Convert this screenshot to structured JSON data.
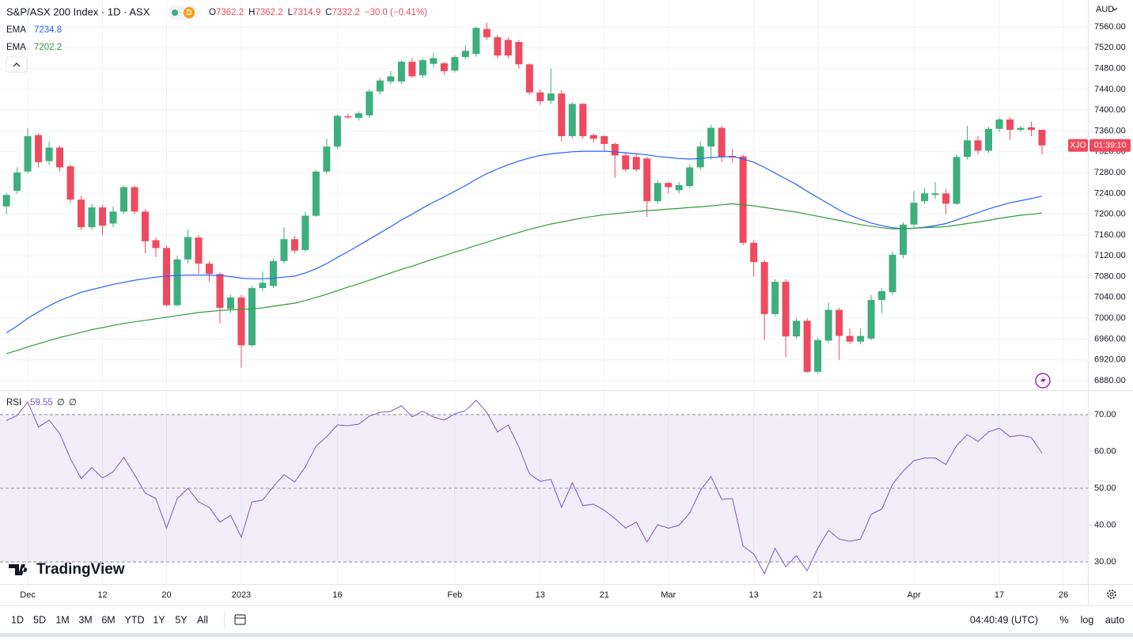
{
  "chart_data": [
    {
      "type": "candlestick",
      "title": "S&P/ASX 200 Index · 1D · ASX",
      "up_color": "#3dae7e",
      "down_color": "#ee4a5e",
      "grid": true,
      "log_scale": false,
      "xlim": [
        -0.6,
        101.3
      ],
      "xticks": [
        {
          "value": 2,
          "label": "Dec"
        },
        {
          "value": 9,
          "label": "12"
        },
        {
          "value": 15,
          "label": "20"
        },
        {
          "value": 22,
          "label": "2023"
        },
        {
          "value": 31,
          "label": "16"
        },
        {
          "value": 42,
          "label": "Feb"
        },
        {
          "value": 50,
          "label": "13"
        },
        {
          "value": 56,
          "label": "21"
        },
        {
          "value": 62,
          "label": "Mar"
        },
        {
          "value": 70,
          "label": "13"
        },
        {
          "value": 76,
          "label": "21"
        },
        {
          "value": 85,
          "label": "Apr"
        },
        {
          "value": 93,
          "label": "17"
        },
        {
          "value": 99,
          "label": "26"
        }
      ],
      "ylim": [
        6863.3,
        7611.7
      ],
      "yticks": [
        {
          "value": 6880,
          "label": "6880.00"
        },
        {
          "value": 6920,
          "label": "6920.00"
        },
        {
          "value": 6960,
          "label": "6960.00"
        },
        {
          "value": 7000,
          "label": "7000.00"
        },
        {
          "value": 7040,
          "label": "7040.00"
        },
        {
          "value": 7080,
          "label": "7080.00"
        },
        {
          "value": 7120,
          "label": "7120.00"
        },
        {
          "value": 7160,
          "label": "7160.00"
        },
        {
          "value": 7200,
          "label": "7200.00"
        },
        {
          "value": 7240,
          "label": "7240.00"
        },
        {
          "value": 7280,
          "label": "7280.00"
        },
        {
          "value": 7320,
          "label": "7320.00"
        },
        {
          "value": 7360,
          "label": "7360.00"
        },
        {
          "value": 7400,
          "label": "7400.00"
        },
        {
          "value": 7440,
          "label": "7440.00"
        },
        {
          "value": 7480,
          "label": "7480.00"
        },
        {
          "value": 7520,
          "label": "7520.00"
        },
        {
          "value": 7560,
          "label": "7560.00"
        }
      ],
      "ohlc_keys": [
        "O",
        "H",
        "L",
        "C"
      ],
      "change_label": "−30.0 (−0.41%)",
      "open": [
        7215,
        7245,
        7282,
        7352,
        7302,
        7328,
        7292,
        7228,
        7175,
        7213,
        7182,
        7205,
        7252,
        7205,
        7150,
        7135,
        7025,
        7113,
        7155,
        7105,
        7085,
        7018,
        7040,
        6948,
        7058,
        7062,
        7110,
        7152,
        7131,
        7197,
        7282,
        7330,
        7388,
        7385,
        7390,
        7436,
        7455,
        7455,
        7493,
        7467,
        7489,
        7490,
        7476,
        7502,
        7508,
        7556,
        7540,
        7535,
        7531,
        7488,
        7434,
        7418,
        7432,
        7350,
        7412,
        7352,
        7350,
        7335,
        7313,
        7310,
        7307,
        7225,
        7260,
        7246,
        7254,
        7290,
        7330,
        7366,
        7312,
        7311,
        7145,
        7108,
        7008,
        7070,
        6965,
        6995,
        6897,
        6957,
        7016,
        6966,
        6955,
        6961,
        7035,
        7050,
        7122,
        7180,
        7225,
        7237,
        7240,
        7220,
        7310,
        7342,
        7322,
        7364,
        7382,
        7362,
        7367,
        7362.2
      ],
      "high": [
        7240,
        7290,
        7365,
        7355,
        7340,
        7332,
        7295,
        7235,
        7220,
        7218,
        7215,
        7255,
        7255,
        7210,
        7155,
        7140,
        7120,
        7170,
        7160,
        7110,
        7088,
        7045,
        7045,
        7062,
        7090,
        7115,
        7175,
        7158,
        7205,
        7285,
        7345,
        7392,
        7393,
        7398,
        7440,
        7462,
        7475,
        7496,
        7500,
        7500,
        7510,
        7493,
        7506,
        7525,
        7560,
        7568,
        7545,
        7540,
        7535,
        7490,
        7440,
        7480,
        7438,
        7415,
        7414,
        7355,
        7352,
        7338,
        7318,
        7315,
        7310,
        7265,
        7262,
        7262,
        7295,
        7340,
        7372,
        7370,
        7325,
        7315,
        7150,
        7112,
        7075,
        7075,
        7000,
        7000,
        6962,
        7030,
        7020,
        6980,
        6980,
        7045,
        7058,
        7128,
        7185,
        7245,
        7250,
        7262,
        7248,
        7315,
        7370,
        7350,
        7368,
        7386,
        7386,
        7370,
        7378,
        7362.2
      ],
      "low": [
        7200,
        7240,
        7278,
        7290,
        7295,
        7282,
        7222,
        7170,
        7170,
        7160,
        7175,
        7200,
        7200,
        7125,
        7118,
        7022,
        7022,
        7105,
        7085,
        7070,
        6990,
        7010,
        6905,
        6945,
        7052,
        7058,
        7105,
        7125,
        7128,
        7195,
        7278,
        7325,
        7383,
        7380,
        7385,
        7430,
        7450,
        7450,
        7462,
        7462,
        7482,
        7468,
        7472,
        7498,
        7503,
        7535,
        7500,
        7500,
        7480,
        7430,
        7410,
        7412,
        7340,
        7345,
        7345,
        7338,
        7320,
        7270,
        7282,
        7282,
        7195,
        7220,
        7240,
        7240,
        7250,
        7285,
        7305,
        7300,
        7300,
        7140,
        7080,
        6958,
        7004,
        6925,
        6960,
        6895,
        6893,
        6952,
        6920,
        6950,
        6950,
        6958,
        7010,
        7045,
        7115,
        7175,
        7220,
        7230,
        7200,
        7218,
        7305,
        7315,
        7318,
        7358,
        7343,
        7358,
        7350,
        7314.9
      ],
      "close": [
        7237,
        7280,
        7350,
        7300,
        7328,
        7290,
        7228,
        7175,
        7213,
        7178,
        7205,
        7252,
        7205,
        7148,
        7135,
        7025,
        7113,
        7156,
        7105,
        7085,
        7020,
        7040,
        6948,
        7058,
        7068,
        7110,
        7152,
        7130,
        7197,
        7282,
        7330,
        7389,
        7386,
        7394,
        7436,
        7457,
        7465,
        7493,
        7465,
        7496,
        7500,
        7475,
        7502,
        7514,
        7558,
        7540,
        7505,
        7505,
        7488,
        7434,
        7417,
        7432,
        7350,
        7412,
        7350,
        7345,
        7335,
        7313,
        7286,
        7286,
        7225,
        7260,
        7252,
        7256,
        7290,
        7330,
        7366,
        7310,
        7309,
        7145,
        7108,
        7008,
        7070,
        6965,
        6995,
        6897,
        6958,
        7016,
        6966,
        6955,
        6966,
        7035,
        7052,
        7122,
        7180,
        7222,
        7240,
        7240,
        7220,
        7310,
        7342,
        7322,
        7364,
        7382,
        7362,
        7366,
        7362,
        7332.2
      ],
      "series": [
        {
          "name": "EMA",
          "color": "#2962ff",
          "values": [
            6972,
            6985,
            7000,
            7012,
            7024,
            7034,
            7042,
            7050,
            7055,
            7060,
            7065,
            7069,
            7073,
            7076,
            7079,
            7081,
            7082,
            7083,
            7083,
            7083,
            7082,
            7080,
            7077,
            7076,
            7076,
            7077,
            7079,
            7081,
            7087,
            7095,
            7105,
            7117,
            7128,
            7140,
            7152,
            7164,
            7176,
            7189,
            7200,
            7212,
            7223,
            7233,
            7244,
            7255,
            7267,
            7278,
            7287,
            7295,
            7302,
            7308,
            7313,
            7316,
            7318,
            7320,
            7321,
            7321,
            7321,
            7320,
            7318,
            7316,
            7314,
            7311,
            7309,
            7307,
            7306,
            7307,
            7309,
            7310,
            7311,
            7306,
            7300,
            7290,
            7279,
            7268,
            7257,
            7244,
            7232,
            7220,
            7208,
            7198,
            7190,
            7183,
            7178,
            7174,
            7172,
            7173,
            7175,
            7178,
            7182,
            7189,
            7196,
            7203,
            7210,
            7216,
            7222,
            7226,
            7230,
            7234.8
          ]
        },
        {
          "name": "EMA",
          "color": "#2e9e3e",
          "values": [
            6932,
            6938,
            6945,
            6951,
            6957,
            6963,
            6968,
            6973,
            6978,
            6982,
            6986,
            6990,
            6993,
            6996,
            6999,
            7002,
            7005,
            7008,
            7011,
            7013,
            7015,
            7016,
            7017,
            7018,
            7020,
            7023,
            7026,
            7029,
            7034,
            7040,
            7046,
            7053,
            7060,
            7066,
            7073,
            7080,
            7087,
            7094,
            7100,
            7107,
            7114,
            7120,
            7127,
            7133,
            7140,
            7146,
            7153,
            7159,
            7165,
            7171,
            7176,
            7181,
            7185,
            7189,
            7193,
            7196,
            7199,
            7201,
            7203,
            7205,
            7207,
            7208,
            7210,
            7211,
            7213,
            7214,
            7216,
            7218,
            7220,
            7218,
            7216,
            7213,
            7210,
            7207,
            7204,
            7200,
            7196,
            7192,
            7188,
            7184,
            7180,
            7177,
            7174,
            7172,
            7172,
            7173,
            7174,
            7175,
            7176,
            7179,
            7182,
            7185,
            7188,
            7192,
            7195,
            7198,
            7200,
            7202.2
          ]
        }
      ],
      "currency": "AUD",
      "symbol_label": "XJO",
      "countdown": "01:39:10"
    },
    {
      "type": "line",
      "title": "RSI",
      "legend_extras": [
        "∅",
        "∅"
      ],
      "ylim": [
        24,
        76
      ],
      "yticks": [
        {
          "value": 30,
          "label": "30.00"
        },
        {
          "value": 40,
          "label": "40.00"
        },
        {
          "value": 50,
          "label": "50.00"
        },
        {
          "value": 60,
          "label": "60.00"
        },
        {
          "value": 70,
          "label": "70.00"
        }
      ],
      "levels": [
        30,
        50,
        70
      ],
      "band_color": "#7e57c2",
      "series": [
        {
          "name": "RSI",
          "color": "#7e57c2",
          "values": [
            68.4,
            69.8,
            73.4,
            66.6,
            68.5,
            64.8,
            58,
            52.6,
            55.6,
            52.8,
            54.5,
            58.4,
            53.7,
            48.7,
            47.2,
            39.2,
            47.2,
            50,
            46.3,
            44.8,
            40.8,
            42.7,
            36.7,
            46.3,
            46.8,
            50.4,
            53.7,
            51.7,
            55.8,
            61.4,
            64,
            67.2,
            67,
            67.4,
            69.6,
            70.6,
            70.9,
            72.4,
            69.4,
            70.9,
            69.4,
            68.5,
            70.2,
            71.1,
            73.9,
            70.6,
            65.3,
            67.2,
            61.2,
            53.9,
            51.9,
            52.4,
            44.8,
            51.5,
            45.3,
            45.7,
            44,
            41.8,
            39.2,
            40.8,
            35.4,
            40.1,
            39.2,
            39.9,
            43.3,
            49.4,
            53.2,
            47,
            47.2,
            34.3,
            32.2,
            26.8,
            33.7,
            28.7,
            31.7,
            27.6,
            33.7,
            38.6,
            36.2,
            35.6,
            36.2,
            42.9,
            44.4,
            51.1,
            54.7,
            57.5,
            58.2,
            58.2,
            56.5,
            61.6,
            64.6,
            62.7,
            65.3,
            66.3,
            64,
            64.4,
            63.8,
            59.55
          ]
        }
      ]
    }
  ],
  "ui": {
    "badge": "D",
    "logo": "TradingView",
    "toolbar": {
      "ranges": [
        "1D",
        "5D",
        "1M",
        "3M",
        "6M",
        "YTD",
        "1Y",
        "5Y",
        "All"
      ],
      "time": "04:40:49 (UTC)",
      "options": [
        "%",
        "log",
        "auto"
      ]
    }
  }
}
